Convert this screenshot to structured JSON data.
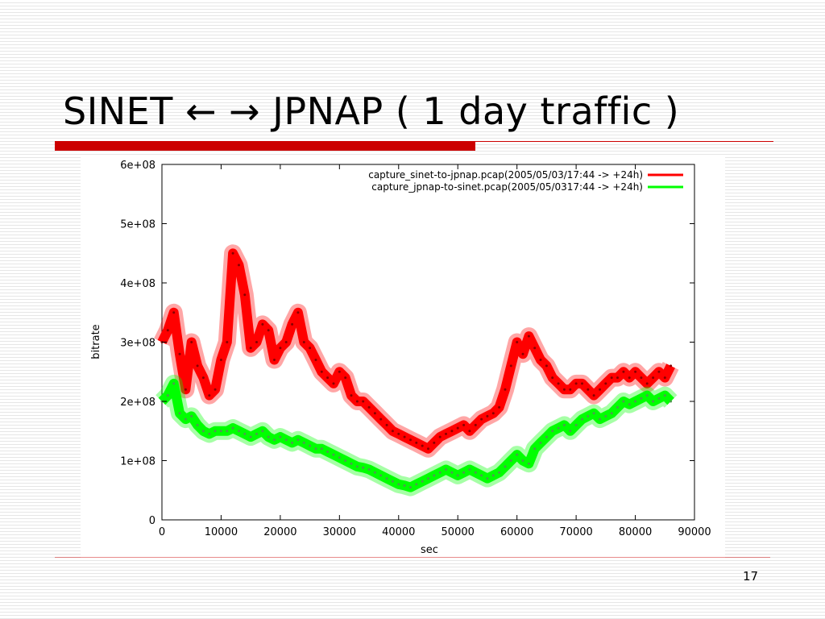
{
  "slide": {
    "title": "SINET ← → JPNAP ( 1 day traffic )",
    "page_number": "17"
  },
  "colors": {
    "accent_red": "#cc0000",
    "series_red": "#ff0000",
    "series_green": "#00ff00"
  },
  "chart_data": {
    "type": "line",
    "xlabel": "sec",
    "ylabel": "bitrate",
    "xlim": [
      0,
      90000
    ],
    "ylim": [
      0,
      600000000
    ],
    "x_ticks": [
      "0",
      "10000",
      "20000",
      "30000",
      "40000",
      "50000",
      "60000",
      "70000",
      "80000",
      "90000"
    ],
    "y_ticks": [
      "0",
      "1e+08",
      "2e+08",
      "3e+08",
      "4e+08",
      "5e+08",
      "6e+08"
    ],
    "grid": false,
    "legend_position": "top-right",
    "series": [
      {
        "name": "capture_sinet-to-jpnap.pcap(2005/05/03/17:44 -> +24h)",
        "color": "#ff0000",
        "x": [
          0,
          1000,
          2000,
          3000,
          4000,
          5000,
          6000,
          7000,
          8000,
          9000,
          10000,
          11000,
          12000,
          13000,
          14000,
          15000,
          16000,
          17000,
          18000,
          19000,
          20000,
          21000,
          22000,
          23000,
          24000,
          25000,
          26000,
          27000,
          28000,
          29000,
          30000,
          31000,
          32000,
          33000,
          34000,
          35000,
          36000,
          37000,
          38000,
          39000,
          40000,
          41000,
          42000,
          43000,
          44000,
          45000,
          46000,
          47000,
          48000,
          49000,
          50000,
          51000,
          52000,
          53000,
          54000,
          55000,
          56000,
          57000,
          58000,
          59000,
          60000,
          61000,
          62000,
          63000,
          64000,
          65000,
          66000,
          67000,
          68000,
          69000,
          70000,
          71000,
          72000,
          73000,
          74000,
          75000,
          76000,
          77000,
          78000,
          79000,
          80000,
          81000,
          82000,
          83000,
          84000,
          85000,
          86000
        ],
        "y": [
          300000000,
          320000000,
          350000000,
          280000000,
          220000000,
          300000000,
          260000000,
          240000000,
          210000000,
          220000000,
          270000000,
          300000000,
          450000000,
          430000000,
          380000000,
          290000000,
          300000000,
          330000000,
          320000000,
          270000000,
          290000000,
          300000000,
          330000000,
          350000000,
          300000000,
          290000000,
          270000000,
          250000000,
          240000000,
          230000000,
          250000000,
          240000000,
          210000000,
          200000000,
          200000000,
          190000000,
          180000000,
          170000000,
          160000000,
          150000000,
          145000000,
          140000000,
          135000000,
          130000000,
          125000000,
          120000000,
          130000000,
          140000000,
          145000000,
          150000000,
          155000000,
          160000000,
          150000000,
          160000000,
          170000000,
          175000000,
          180000000,
          190000000,
          220000000,
          260000000,
          300000000,
          280000000,
          310000000,
          290000000,
          270000000,
          260000000,
          240000000,
          230000000,
          220000000,
          220000000,
          230000000,
          230000000,
          220000000,
          210000000,
          220000000,
          230000000,
          240000000,
          240000000,
          250000000,
          240000000,
          250000000,
          240000000,
          230000000,
          240000000,
          250000000,
          240000000,
          260000000
        ]
      },
      {
        "name": "capture_jpnap-to-sinet.pcap(2005/05/0317:44 -> +24h)",
        "color": "#00ff00",
        "x": [
          0,
          1000,
          2000,
          3000,
          4000,
          5000,
          6000,
          7000,
          8000,
          9000,
          10000,
          11000,
          12000,
          13000,
          14000,
          15000,
          16000,
          17000,
          18000,
          19000,
          20000,
          21000,
          22000,
          23000,
          24000,
          25000,
          26000,
          27000,
          28000,
          29000,
          30000,
          31000,
          32000,
          33000,
          34000,
          35000,
          36000,
          37000,
          38000,
          39000,
          40000,
          41000,
          42000,
          43000,
          44000,
          45000,
          46000,
          47000,
          48000,
          49000,
          50000,
          51000,
          52000,
          53000,
          54000,
          55000,
          56000,
          57000,
          58000,
          59000,
          60000,
          61000,
          62000,
          63000,
          64000,
          65000,
          66000,
          67000,
          68000,
          69000,
          70000,
          71000,
          72000,
          73000,
          74000,
          75000,
          76000,
          77000,
          78000,
          79000,
          80000,
          81000,
          82000,
          83000,
          84000,
          85000,
          86000
        ],
        "y": [
          200000000,
          210000000,
          230000000,
          180000000,
          170000000,
          175000000,
          160000000,
          150000000,
          145000000,
          150000000,
          150000000,
          150000000,
          155000000,
          150000000,
          145000000,
          140000000,
          145000000,
          150000000,
          140000000,
          135000000,
          140000000,
          135000000,
          130000000,
          135000000,
          130000000,
          125000000,
          120000000,
          120000000,
          115000000,
          110000000,
          105000000,
          100000000,
          95000000,
          90000000,
          88000000,
          85000000,
          80000000,
          75000000,
          70000000,
          65000000,
          60000000,
          58000000,
          55000000,
          60000000,
          65000000,
          70000000,
          75000000,
          80000000,
          85000000,
          80000000,
          75000000,
          80000000,
          85000000,
          80000000,
          75000000,
          70000000,
          75000000,
          80000000,
          90000000,
          100000000,
          110000000,
          100000000,
          95000000,
          120000000,
          130000000,
          140000000,
          150000000,
          155000000,
          160000000,
          150000000,
          160000000,
          170000000,
          175000000,
          180000000,
          170000000,
          175000000,
          180000000,
          190000000,
          200000000,
          195000000,
          200000000,
          205000000,
          210000000,
          200000000,
          205000000,
          210000000,
          200000000
        ]
      }
    ]
  }
}
